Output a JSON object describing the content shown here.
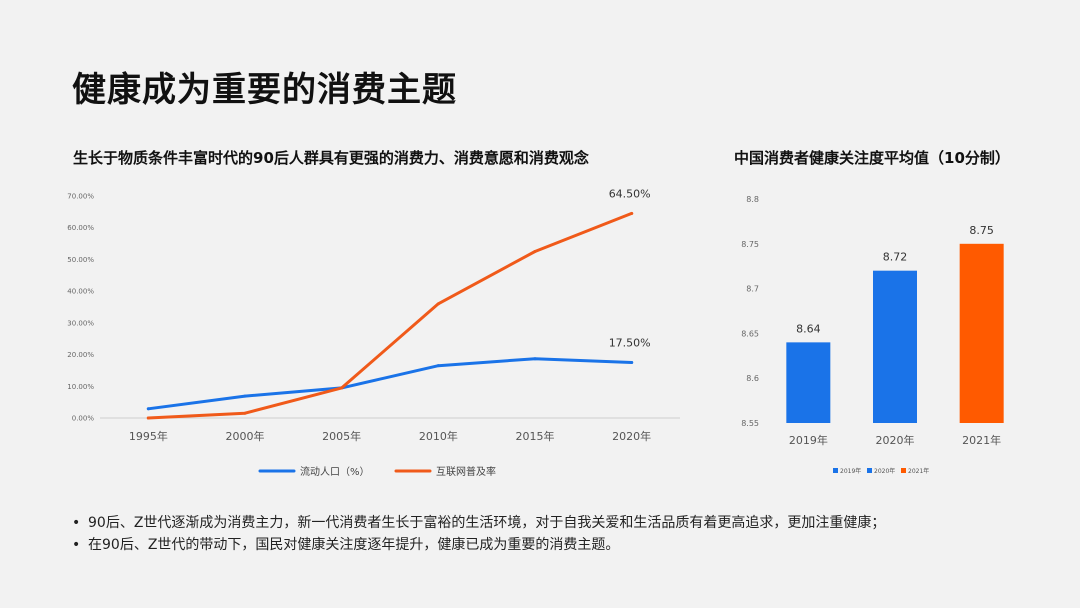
{
  "page": {
    "title": "健康成为重要的消费主题",
    "bullets": [
      "90后、Z世代逐渐成为消费主力，新一代消费者生长于富裕的生活环境，对于自我关爱和生活品质有着更高追求，更加注重健康；",
      "在90后、Z世代的带动下，国民对健康关注度逐年提升，健康已成为重要的消费主题。"
    ]
  },
  "chart_data": [
    {
      "type": "line",
      "title": "生长于物质条件丰富时代的90后人群具有更强的消费力、消费意愿和消费观念",
      "x": [
        "1995年",
        "2000年",
        "2005年",
        "2010年",
        "2015年",
        "2020年"
      ],
      "yticks": [
        "0.00%",
        "10.00%",
        "20.00%",
        "30.00%",
        "40.00%",
        "50.00%",
        "60.00%",
        "70.00%"
      ],
      "ylim": [
        0,
        70
      ],
      "grid": false,
      "legend": "bottom",
      "series": [
        {
          "name": "流动人口（%）",
          "color": "#1a73e8",
          "values": [
            2.9,
            6.9,
            9.5,
            16.5,
            18.7,
            17.5
          ],
          "end_label": "17.50%"
        },
        {
          "name": "互联网普及率",
          "color": "#f05a1a",
          "values": [
            0.0,
            1.5,
            9.5,
            36.0,
            52.5,
            64.5
          ],
          "end_label": "64.50%"
        }
      ]
    },
    {
      "type": "bar",
      "title": "中国消费者健康关注度平均值（10分制）",
      "categories": [
        "2019年",
        "2020年",
        "2021年"
      ],
      "values": [
        8.64,
        8.72,
        8.75
      ],
      "value_labels": [
        "8.64",
        "8.72",
        "8.75"
      ],
      "colors": [
        "#1a73e8",
        "#1a73e8",
        "#ff5a00"
      ],
      "yticks": [
        "8.55",
        "8.6",
        "8.65",
        "8.7",
        "8.75",
        "8.8"
      ],
      "ylim": [
        8.55,
        8.8
      ],
      "grid": false,
      "legend": "bottom",
      "legend_items": [
        {
          "name": "2019年",
          "color": "#1a73e8"
        },
        {
          "name": "2020年",
          "color": "#1a73e8"
        },
        {
          "name": "2021年",
          "color": "#ff5a00"
        }
      ]
    }
  ]
}
